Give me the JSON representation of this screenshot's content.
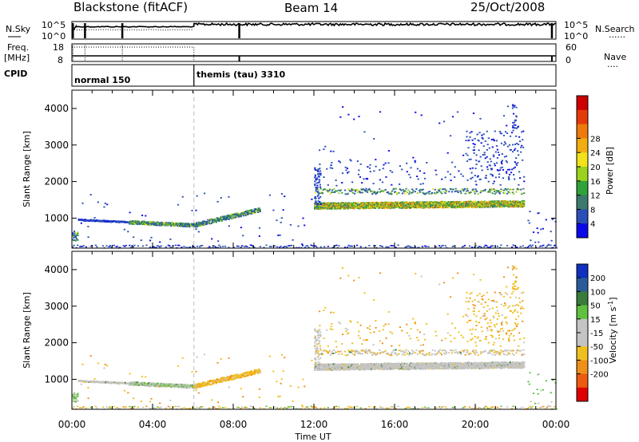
{
  "header": {
    "station": "Blackstone (fitACF)",
    "beam": "Beam 14",
    "date": "25/Oct/2008"
  },
  "status_panel": {
    "left_labels": [
      "N.Sky",
      "Freq.",
      "[MHz]",
      "CPID"
    ],
    "right_labels": [
      "N.Search",
      "Nave"
    ],
    "noise_ticks_left": [
      "10^5",
      "10^0"
    ],
    "noise_ticks_right": [
      "10^5",
      "10^0"
    ],
    "freq_ticks": [
      "18",
      "8"
    ],
    "nave_ticks": [
      "60",
      "0"
    ],
    "cpid_segments": [
      {
        "label": "normal 150",
        "start_hour": 0,
        "end_hour": 6.05
      },
      {
        "label": "themis (tau) 3310",
        "start_hour": 6.05,
        "end_hour": 24
      }
    ],
    "legend_dots": "......",
    "legend_dots2": "...."
  },
  "chart_data": [
    {
      "type": "heatmap",
      "name": "Power",
      "xlabel": "Time UT",
      "ylabel": "Slant Range [km]",
      "xlim": [
        0,
        24
      ],
      "ylim": [
        180,
        4500
      ],
      "x_ticks": [
        "00:00",
        "04:00",
        "08:00",
        "12:00",
        "16:00",
        "20:00",
        "00:00"
      ],
      "y_ticks": [
        1000,
        2000,
        3000,
        4000
      ],
      "colorbar": {
        "label": "Power [dB]",
        "ticks": [
          "4",
          "8",
          "12",
          "16",
          "20",
          "24",
          "28"
        ],
        "colors": [
          "#0a0ae8",
          "#2a4fb8",
          "#3c7a6c",
          "#2fa23a",
          "#9ad21e",
          "#f2e21a",
          "#f2ae10",
          "#ee7a0c",
          "#e43a0a",
          "#cc0000"
        ]
      },
      "features": [
        {
          "desc": "ground scatter band",
          "t_start": 0.3,
          "t_end": 6.0,
          "range_start": 980,
          "range_end": 820
        },
        {
          "desc": "rising band",
          "t_start": 6.0,
          "t_end": 9.3,
          "range_start": 820,
          "range_end": 1250
        },
        {
          "desc": "main echo band",
          "t_start": 12.0,
          "t_end": 22.4,
          "range_start": 1350,
          "range_end": 1400
        },
        {
          "desc": "near-range echoes",
          "t_start": 0,
          "t_end": 24,
          "range": 230
        }
      ]
    },
    {
      "type": "heatmap",
      "name": "Velocity",
      "xlabel": "Time UT",
      "ylabel": "Slant Range [km]",
      "xlim": [
        0,
        24
      ],
      "ylim": [
        180,
        4500
      ],
      "x_ticks": [
        "00:00",
        "04:00",
        "08:00",
        "12:00",
        "16:00",
        "20:00",
        "00:00"
      ],
      "y_ticks": [
        1000,
        2000,
        3000,
        4000
      ],
      "colorbar": {
        "label": "Velocity [m s",
        "label_sup": "-1",
        "label_end": "]",
        "ticks": [
          "200",
          "100",
          "50",
          "15",
          "-15",
          "-50",
          "-100",
          "-200"
        ],
        "colors": [
          "#1030c0",
          "#2a5a9a",
          "#3a7a3a",
          "#60c040",
          "#c4c4c4",
          "#c4c4c4",
          "#f0c020",
          "#f09018",
          "#ee5a10",
          "#dd0000"
        ]
      }
    }
  ]
}
